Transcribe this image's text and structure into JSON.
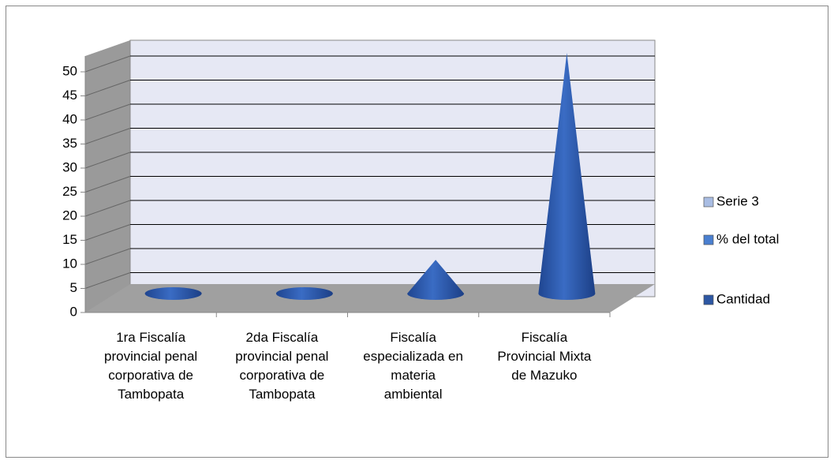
{
  "chart_data": {
    "type": "cone3d",
    "categories": [
      "1ra Fiscalía provincial penal corporativa de Tambopata",
      "2da Fiscalía provincial penal corporativa de Tambopata",
      "Fiscalía especializada en materia ambiental",
      "Fiscalía Provincial Mixta de Mazuko"
    ],
    "series": [
      {
        "name": "Serie 3",
        "color": "#a9bde3",
        "values": [
          null,
          null,
          null,
          null
        ]
      },
      {
        "name": "% del total",
        "color": "#4a7fd0",
        "values": [
          null,
          null,
          null,
          null
        ]
      },
      {
        "name": "Cantidad",
        "color": "#2d57a3",
        "values": [
          0,
          0,
          7,
          50
        ]
      }
    ],
    "ylim": [
      0,
      50
    ],
    "yticks": [
      0,
      5,
      10,
      15,
      20,
      25,
      30,
      35,
      40,
      45,
      50
    ],
    "grid": true,
    "legend": "right"
  }
}
